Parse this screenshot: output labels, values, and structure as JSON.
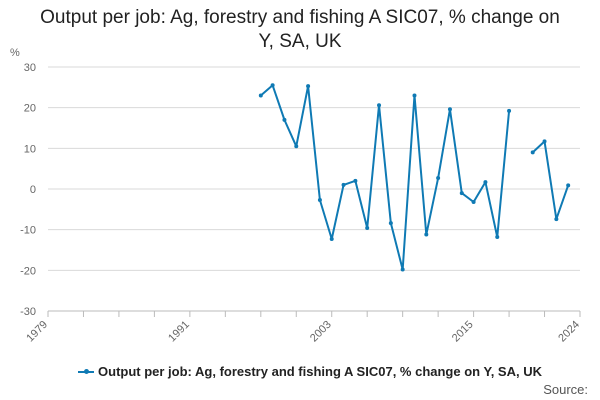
{
  "chart_data": {
    "type": "line",
    "title": "Output per job: Ag, forestry and fishing A SIC07, % change on Y, SA, UK",
    "ylabel": "%",
    "xlabel": "",
    "ylim": [
      -30,
      30
    ],
    "yticks": [
      -30,
      -20,
      -10,
      0,
      10,
      20,
      30
    ],
    "xlim": [
      1979,
      2024
    ],
    "xticks": [
      1979,
      1991,
      2003,
      2015,
      2024
    ],
    "grid": true,
    "color": "#0f7ab4",
    "series": [
      {
        "name": "Output per job: Ag, forestry and fishing A SIC07, % change on Y, SA, UK",
        "x": [
          1997,
          1998,
          1999,
          2000,
          2001,
          2002,
          2003,
          2004,
          2005,
          2006,
          2007,
          2008,
          2009,
          2010,
          2011,
          2012,
          2013,
          2014,
          2015,
          2016,
          2017,
          2018,
          2019,
          2020,
          2021,
          2022,
          2023,
          2024
        ],
        "values": [
          23,
          25.5,
          17,
          10.5,
          25.3,
          -2.7,
          -12.3,
          1,
          2,
          -9.6,
          20.6,
          -8.4,
          -19.8,
          23,
          -11.2,
          2.7,
          19.6,
          -1,
          -3.2,
          1.7,
          -11.8,
          19.2,
          null,
          9,
          11.7,
          -7.4,
          0.9,
          null
        ]
      }
    ]
  },
  "legend": {
    "label": "Output per job: Ag, forestry and fishing A SIC07, % change on Y, SA, UK"
  },
  "source": "Source:"
}
